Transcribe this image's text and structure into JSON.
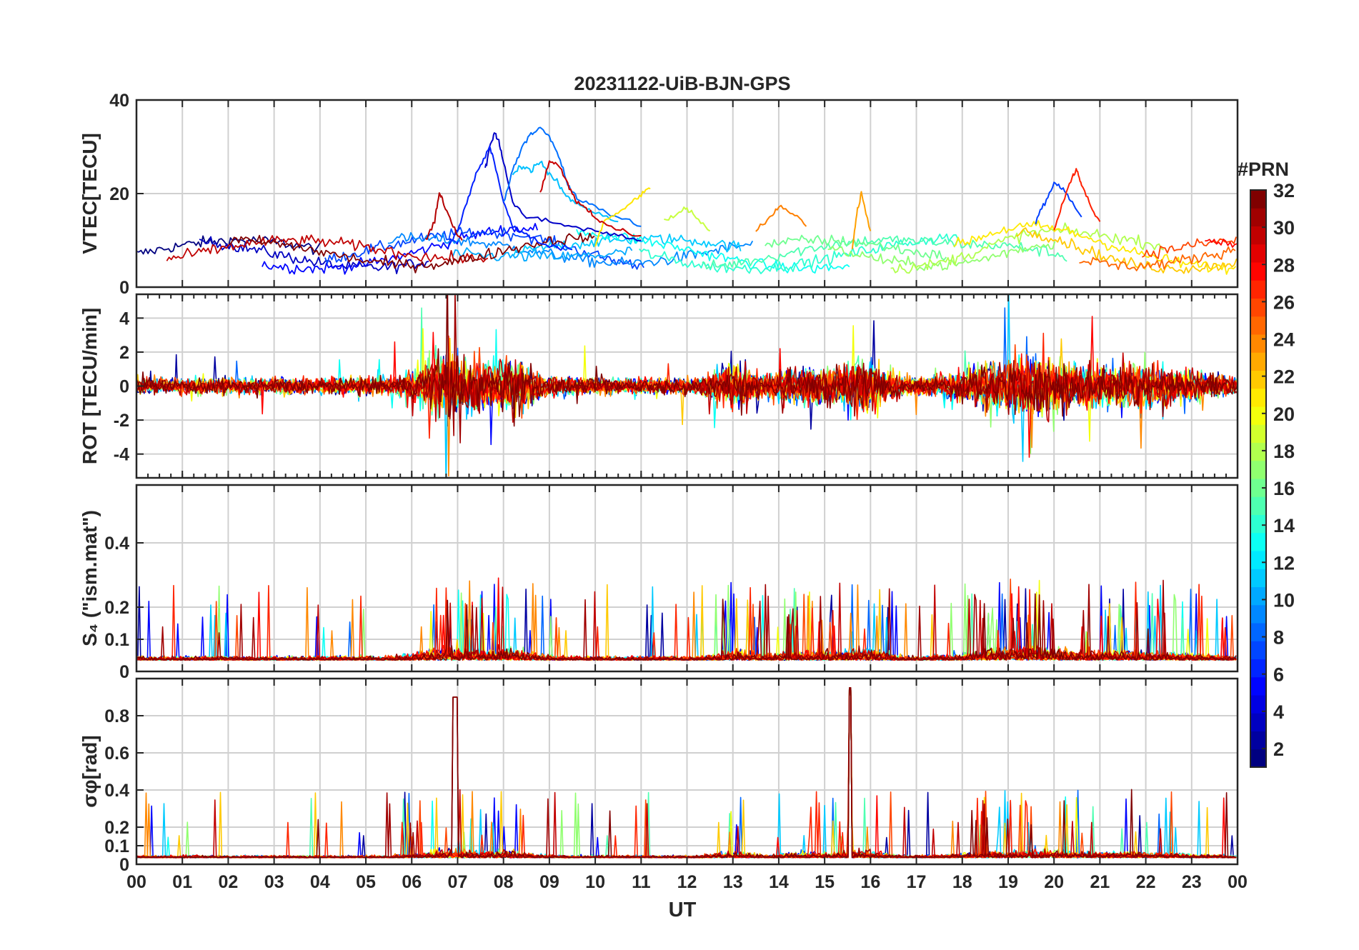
{
  "chart_data": {
    "title": "20231122-UiB-BJN-GPS",
    "xlabel": "UT",
    "x_ticks": [
      "00",
      "01",
      "02",
      "03",
      "04",
      "05",
      "06",
      "07",
      "08",
      "09",
      "10",
      "11",
      "12",
      "13",
      "14",
      "15",
      "16",
      "17",
      "18",
      "19",
      "20",
      "21",
      "22",
      "23",
      "00"
    ],
    "xlim": [
      0,
      24
    ],
    "colorbar": {
      "label": "#PRN",
      "range": [
        1,
        32
      ],
      "ticks": [
        2,
        4,
        6,
        8,
        10,
        12,
        14,
        16,
        18,
        20,
        22,
        24,
        26,
        28,
        30,
        32
      ],
      "colormap": "jet"
    },
    "panels": [
      {
        "id": "vtec",
        "type": "line",
        "ylabel": "VTEC[TECU]",
        "ylim": [
          0,
          40
        ],
        "y_ticks": [
          0,
          20,
          40
        ],
        "y_tick_labels": [
          "0",
          "20",
          "40"
        ],
        "series": [
          {
            "prn": 2,
            "color": "#0000c8",
            "x": [
              7.6,
              7.7,
              7.8,
              7.9,
              8.0,
              8.2,
              8.5,
              9.0,
              9.5,
              10.0,
              10.5,
              11.0
            ],
            "y": [
              25,
              30,
              33,
              31,
              27,
              18,
              15,
              14,
              13,
              12,
              11,
              10
            ]
          },
          {
            "prn": 4,
            "color": "#0020ff",
            "x": [
              6.8,
              7.0,
              7.2,
              7.4,
              7.6,
              7.7,
              7.8,
              8.0,
              8.2,
              8.5,
              9.0,
              9.5
            ],
            "y": [
              9,
              12,
              18,
              24,
              28,
              30,
              27,
              18,
              13,
              11,
              9,
              8
            ]
          },
          {
            "prn": 8,
            "color": "#0070ff",
            "x": [
              8.0,
              8.2,
              8.4,
              8.6,
              8.8,
              9.0,
              9.2,
              9.4,
              9.6,
              10.0,
              10.5,
              11.0
            ],
            "y": [
              18,
              25,
              30,
              33,
              34,
              32,
              28,
              22,
              19,
              17,
              15,
              13
            ]
          },
          {
            "prn": 12,
            "color": "#00c0ff",
            "x": [
              8.2,
              8.4,
              8.6,
              8.8,
              9.0,
              9.2,
              9.4,
              9.6,
              9.8,
              10.0,
              10.5
            ],
            "y": [
              24,
              26,
              25,
              27,
              24,
              22,
              19,
              18,
              17,
              16,
              14
            ]
          },
          {
            "prn": 20,
            "color": "#ffe600",
            "x": [
              10.0,
              10.2,
              10.5,
              10.8,
              11.0,
              11.2
            ],
            "y": [
              9,
              14,
              16,
              18,
              20,
              21
            ]
          },
          {
            "prn": 29,
            "color": "#c80000",
            "x": [
              8.8,
              9.0,
              9.2,
              9.4,
              9.6,
              9.8,
              10.0,
              10.3,
              10.6,
              11.0
            ],
            "y": [
              20,
              27,
              26,
              22,
              18,
              17,
              15,
              13,
              12,
              11
            ]
          },
          {
            "prn": 19,
            "color": "#c8ff40",
            "x": [
              11.5,
              11.8,
              12.0,
              12.2,
              12.5
            ],
            "y": [
              14,
              16,
              17,
              15,
              12
            ]
          },
          {
            "prn": 24,
            "color": "#ff8000",
            "x": [
              13.5,
              13.8,
              14.0,
              14.3,
              14.6
            ],
            "y": [
              12,
              15,
              17,
              16,
              13
            ]
          },
          {
            "prn": 23,
            "color": "#ffa000",
            "x": [
              15.6,
              15.7,
              15.8,
              16.0
            ],
            "y": [
              8,
              16,
              20,
              12
            ]
          },
          {
            "prn": 6,
            "color": "#0040ff",
            "x": [
              19.6,
              19.8,
              20.0,
              20.2,
              20.4,
              20.6
            ],
            "y": [
              14,
              18,
              22,
              21,
              18,
              15
            ]
          },
          {
            "prn": 27,
            "color": "#ff2000",
            "x": [
              20.0,
              20.2,
              20.4,
              20.5,
              20.6,
              20.8,
              21.0
            ],
            "y": [
              12,
              18,
              24,
              25,
              22,
              17,
              14
            ]
          },
          {
            "prn": 31,
            "color": "#b40000",
            "x": [
              6.3,
              6.5,
              6.6,
              6.7,
              6.9,
              7.1
            ],
            "y": [
              10,
              14,
              20,
              18,
              13,
              10
            ]
          }
        ]
      },
      {
        "id": "rot",
        "type": "line",
        "ylabel": "ROT [TECU/min]",
        "ylim": [
          -5.4,
          5.4
        ],
        "y_ticks": [
          -4,
          -2,
          0,
          2,
          4
        ],
        "y_tick_labels": [
          "-4",
          "-2",
          "0",
          "2",
          "4"
        ]
      },
      {
        "id": "s4",
        "type": "line",
        "ylabel": "S₄ (\"ism.mat\")",
        "ylim": [
          0,
          0.58
        ],
        "y_ticks": [
          0,
          0.1,
          0.2,
          0.4
        ],
        "y_tick_labels": [
          "0",
          "0.1",
          "0.2",
          "0.4"
        ]
      },
      {
        "id": "sigma",
        "type": "line",
        "ylabel": "σφ[rad]",
        "ylim": [
          0,
          1.0
        ],
        "y_ticks": [
          0,
          0.1,
          0.2,
          0.4,
          0.6,
          0.8
        ],
        "y_tick_labels": [
          "0",
          "0.1",
          "0.2",
          "0.4",
          "0.6",
          "0.8"
        ]
      }
    ]
  }
}
